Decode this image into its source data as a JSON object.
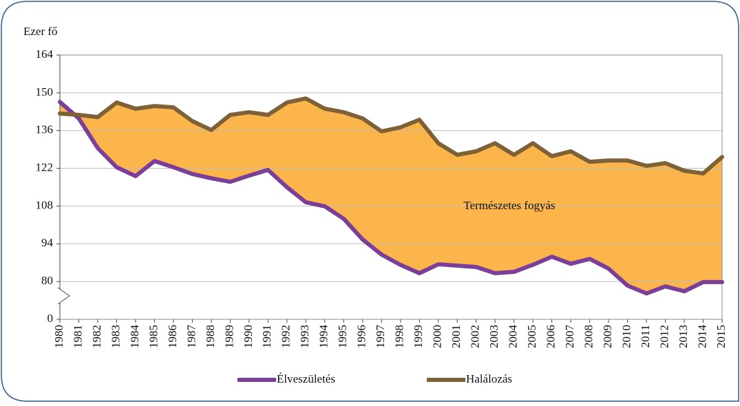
{
  "chart_data": {
    "type": "line",
    "y_unit_label": "Ezer fő",
    "annotation": "Természetes fogyás",
    "categories": [
      "1980",
      "1981",
      "1982",
      "1983",
      "1984",
      "1985",
      "1986",
      "1987",
      "1988",
      "1989",
      "1990",
      "1991",
      "1992",
      "1993",
      "1994",
      "1995",
      "1996",
      "1997",
      "1998",
      "1999",
      "2000",
      "2001",
      "2002",
      "2003",
      "2004",
      "2005",
      "2006",
      "2007",
      "2008",
      "2009",
      "2010",
      "2011",
      "2012",
      "2013",
      "2014",
      "2015"
    ],
    "series": [
      {
        "name": "Élveszületés",
        "color": "#7b3f99",
        "values": [
          146.6,
          140.5,
          129.5,
          122.4,
          119.1,
          124.7,
          122.4,
          119.9,
          118.3,
          117.0,
          119.3,
          121.4,
          115.0,
          109.4,
          107.9,
          103.3,
          95.6,
          90.0,
          86.2,
          83.1,
          86.4,
          85.9,
          85.4,
          83.1,
          83.6,
          86.2,
          89.2,
          86.6,
          88.4,
          84.8,
          78.5,
          75.6,
          78.2,
          76.4,
          79.8,
          79.8
        ]
      },
      {
        "name": "Halálozás",
        "color": "#7e6137",
        "values": [
          142.3,
          141.8,
          141.0,
          146.4,
          144.1,
          145.1,
          144.6,
          139.5,
          136.2,
          141.8,
          142.8,
          141.8,
          146.4,
          147.9,
          144.1,
          142.8,
          140.5,
          135.7,
          137.2,
          140.0,
          131.3,
          127.0,
          128.3,
          131.3,
          127.0,
          131.3,
          126.5,
          128.3,
          124.4,
          124.9,
          124.9,
          122.9,
          123.9,
          121.1,
          120.1,
          126.2
        ]
      }
    ],
    "fill_between_color": "#fbb54b",
    "ylim": [
      0,
      164
    ],
    "y_break": [
      0,
      66
    ],
    "yticks": [
      0,
      80,
      94,
      108,
      122,
      136,
      150,
      164
    ],
    "grid": true
  }
}
